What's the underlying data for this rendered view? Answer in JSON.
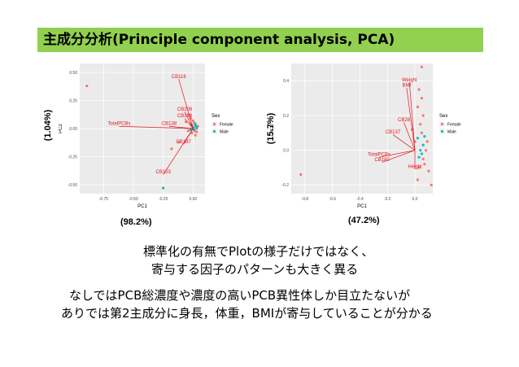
{
  "slide": {
    "title": "主成分分析(Principle component analysis, PCA)",
    "title_bg": "#92d050",
    "note_line1": "標準化の有無でPlotの様子だけではなく、",
    "note_line2": "寄与する因子のパターンも大きく異る",
    "note_line3": "なしではPCB総濃度や濃度の高いPCB異性体しか目立たないが",
    "note_line4": "ありでは第2主成分に身長，体重，BMIが寄与していることが分かる"
  },
  "chart_data": [
    {
      "type": "scatter",
      "title": "",
      "xlabel": "PC1",
      "ylabel": "PC2",
      "xlim": [
        -0.95,
        0.1
      ],
      "ylim": [
        -0.58,
        0.58
      ],
      "xticks": [
        "-0.75",
        "-0.50",
        "-0.25",
        "0.00"
      ],
      "xtick_values": [
        -0.75,
        -0.5,
        -0.25,
        0.0
      ],
      "yticks": [
        "0.50",
        "0.25",
        "0.00",
        "-0.25",
        "-0.50"
      ],
      "ytick_values": [
        0.5,
        0.25,
        0.0,
        -0.25,
        -0.5
      ],
      "variance_x": "(98.2%)",
      "variance_y": "(1.04%)",
      "grid": true,
      "legend": {
        "title": "Sex",
        "position": "right",
        "entries": [
          {
            "name": "Female",
            "color": "#f8766d"
          },
          {
            "name": "Male",
            "color": "#00bfc4"
          }
        ]
      },
      "loadings": [
        {
          "label": "CB116",
          "x": -0.12,
          "y": 0.44
        },
        {
          "label": "TotalPCBs",
          "x": -0.62,
          "y": 0.02
        },
        {
          "label": "CB138",
          "x": -0.2,
          "y": 0.02
        },
        {
          "label": "CB206",
          "x": -0.07,
          "y": 0.15
        },
        {
          "label": "CB153",
          "x": -0.07,
          "y": 0.09
        },
        {
          "label": "CB187",
          "x": -0.08,
          "y": -0.14
        },
        {
          "label": "CB153",
          "x": -0.25,
          "y": -0.41
        }
      ],
      "series": [
        {
          "name": "Female",
          "color": "#f8766d",
          "points": [
            [
              -0.89,
              0.38
            ],
            [
              -0.12,
              -0.12
            ],
            [
              -0.18,
              -0.18
            ],
            [
              -0.06,
              0.06
            ],
            [
              -0.03,
              0.12
            ],
            [
              -0.02,
              0.04
            ],
            [
              0.0,
              0.01
            ],
            [
              0.01,
              -0.02
            ],
            [
              0.02,
              0.03
            ],
            [
              -0.01,
              -0.04
            ],
            [
              0.03,
              0.0
            ],
            [
              0.0,
              0.07
            ],
            [
              -0.04,
              -0.02
            ],
            [
              0.02,
              -0.06
            ],
            [
              0.04,
              0.02
            ],
            [
              -0.02,
              0.09
            ],
            [
              0.01,
              0.05
            ],
            [
              0.03,
              -0.03
            ]
          ]
        },
        {
          "name": "Male",
          "color": "#00bfc4",
          "points": [
            [
              -0.25,
              -0.53
            ],
            [
              0.0,
              0.0
            ],
            [
              0.02,
              0.02
            ],
            [
              -0.01,
              0.03
            ],
            [
              0.01,
              -0.01
            ],
            [
              0.03,
              0.01
            ],
            [
              -0.02,
              -0.01
            ],
            [
              0.02,
              0.04
            ]
          ]
        }
      ]
    },
    {
      "type": "scatter",
      "title": "",
      "xlabel": "PC1",
      "ylabel": "PC2",
      "xlim": [
        -0.9,
        0.13
      ],
      "ylim": [
        -0.25,
        0.5
      ],
      "xticks": [
        "-0.8",
        "-0.6",
        "-0.4",
        "-0.2",
        "0.0"
      ],
      "xtick_values": [
        -0.8,
        -0.6,
        -0.4,
        -0.2,
        0.0
      ],
      "yticks": [
        "0.4",
        "0.2",
        "0.0",
        "-0.2"
      ],
      "ytick_values": [
        0.4,
        0.2,
        0.0,
        -0.2
      ],
      "variance_x": "(47.2%)",
      "variance_y": "(15.7%)",
      "grid": true,
      "legend": {
        "title": "Sex",
        "position": "right",
        "entries": [
          {
            "name": "Female",
            "color": "#f8766d"
          },
          {
            "name": "Male",
            "color": "#00bfc4"
          }
        ]
      },
      "loadings": [
        {
          "label": "Weight",
          "x": -0.04,
          "y": 0.39
        },
        {
          "label": "BMI",
          "x": -0.06,
          "y": 0.36
        },
        {
          "label": "CB28",
          "x": -0.08,
          "y": 0.16
        },
        {
          "label": "CB137",
          "x": -0.16,
          "y": 0.09
        },
        {
          "label": "TotalPCBs",
          "x": -0.26,
          "y": -0.04
        },
        {
          "label": "CB180",
          "x": -0.24,
          "y": -0.07
        },
        {
          "label": "Height",
          "x": 0.0,
          "y": -0.11
        }
      ],
      "series": [
        {
          "name": "Female",
          "color": "#f8766d",
          "points": [
            [
              0.05,
              0.48
            ],
            [
              -0.83,
              -0.14
            ],
            [
              0.03,
              0.35
            ],
            [
              0.02,
              0.25
            ],
            [
              0.06,
              0.2
            ],
            [
              0.05,
              0.1
            ],
            [
              0.08,
              0.0
            ],
            [
              0.06,
              -0.05
            ],
            [
              0.1,
              -0.12
            ],
            [
              0.12,
              -0.2
            ],
            [
              0.02,
              -0.17
            ],
            [
              0.04,
              0.15
            ],
            [
              0.09,
              0.05
            ],
            [
              0.0,
              0.05
            ],
            [
              0.03,
              -0.1
            ],
            [
              0.07,
              -0.08
            ],
            [
              0.05,
              0.3
            ],
            [
              -0.02,
              0.12
            ]
          ]
        },
        {
          "name": "Male",
          "color": "#00bfc4",
          "points": [
            [
              0.04,
              0.0
            ],
            [
              0.06,
              0.03
            ],
            [
              0.02,
              0.07
            ],
            [
              0.05,
              -0.02
            ],
            [
              0.07,
              0.08
            ],
            [
              0.03,
              -0.04
            ]
          ]
        }
      ]
    }
  ]
}
